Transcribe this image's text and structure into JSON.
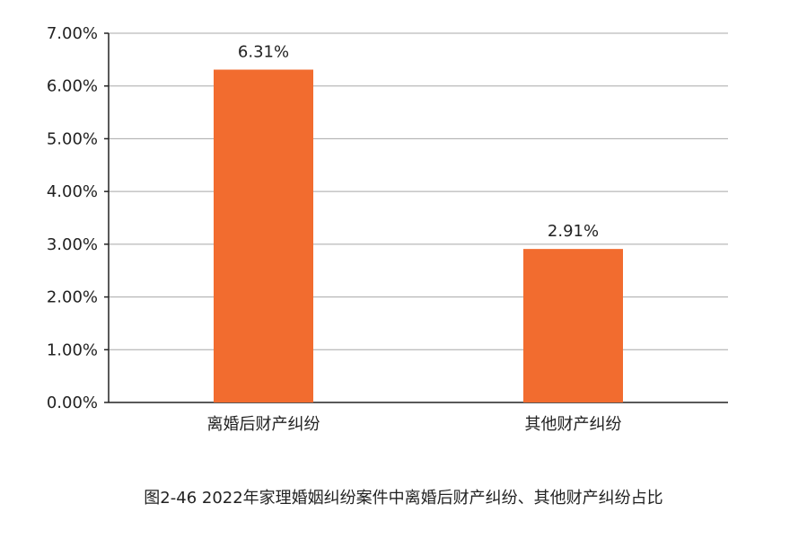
{
  "chart_data": {
    "type": "bar",
    "categories": [
      "离婚后财产纠纷",
      "其他财产纠纷"
    ],
    "values": [
      6.31,
      2.91
    ],
    "data_labels": [
      "6.31%",
      "2.91%"
    ],
    "ylim": [
      0,
      7
    ],
    "yticks": [
      0,
      1,
      2,
      3,
      4,
      5,
      6,
      7
    ],
    "ytick_labels": [
      "0.00%",
      "1.00%",
      "2.00%",
      "3.00%",
      "4.00%",
      "5.00%",
      "6.00%",
      "7.00%"
    ],
    "grid": true,
    "bar_color": "#F26C2F",
    "caption": "图2-46  2022年家理婚姻纠纷案件中离婚后财产纠纷、其他财产纠纷占比"
  }
}
